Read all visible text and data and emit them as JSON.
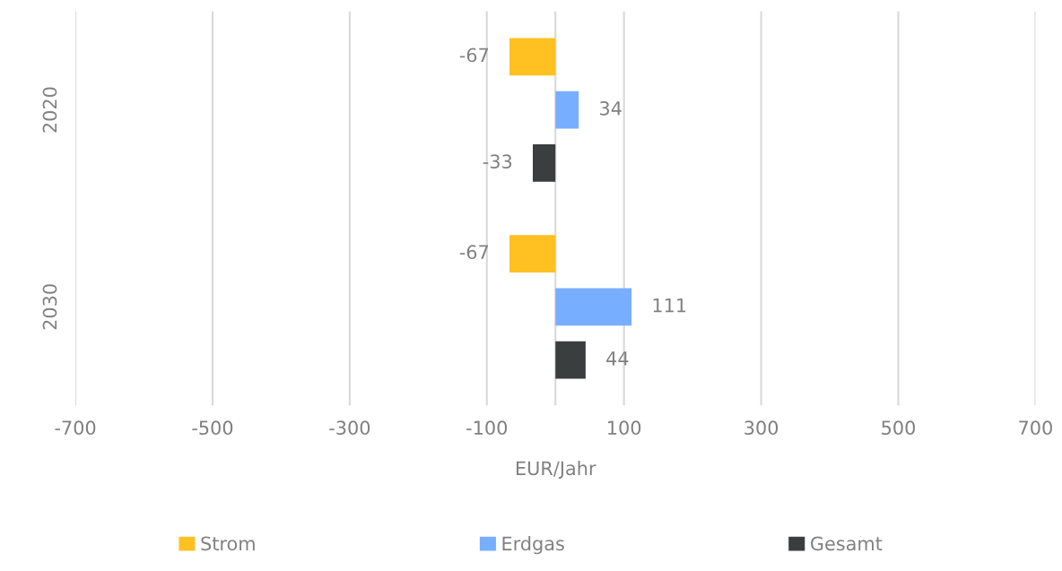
{
  "chart_data": {
    "type": "bar",
    "orientation": "horizontal",
    "xlabel": "EUR/Jahr",
    "categories": [
      "2020",
      "2030"
    ],
    "series": [
      {
        "name": "Strom",
        "color": "#ffc022",
        "values": [
          -67,
          -67
        ]
      },
      {
        "name": "Erdgas",
        "color": "#78aeff",
        "values": [
          34,
          111
        ]
      },
      {
        "name": "Gesamt",
        "color": "#3a3e3f",
        "values": [
          -33,
          44
        ]
      }
    ],
    "xlim": [
      -700,
      700
    ],
    "xticks": [
      -700,
      -500,
      -300,
      -100,
      100,
      300,
      500,
      700
    ],
    "grid": "x",
    "legend": "bottom",
    "data_labels": true
  }
}
